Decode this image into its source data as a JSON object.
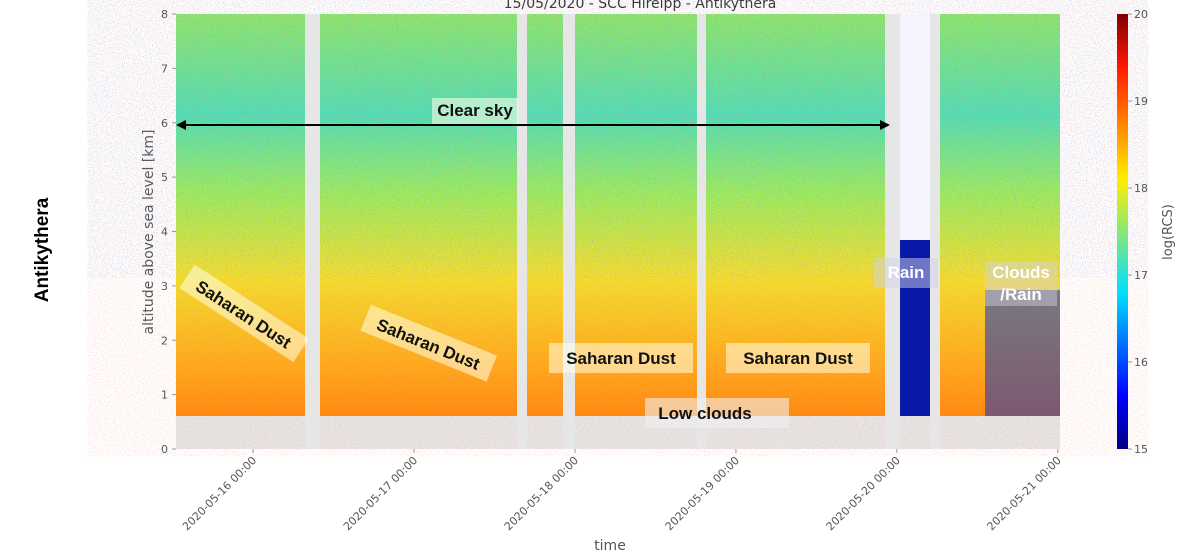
{
  "chart_data": {
    "type": "heatmap",
    "title": "15/05/2020 - SCC Hirelpp - Antikythera",
    "side_label": "Antikythera",
    "x_label": "time",
    "y_label": "altitude above sea level [km]",
    "xlim": [
      "2020-05-15T12:30",
      "2020-05-21T00:20"
    ],
    "xticks": [
      {
        "value": "2020-05-16T00:00",
        "label": "2020-05-16 00:00"
      },
      {
        "value": "2020-05-17T00:00",
        "label": "2020-05-17 00:00"
      },
      {
        "value": "2020-05-18T00:00",
        "label": "2020-05-18 00:00"
      },
      {
        "value": "2020-05-19T00:00",
        "label": "2020-05-19 00:00"
      },
      {
        "value": "2020-05-20T00:00",
        "label": "2020-05-20 00:00"
      },
      {
        "value": "2020-05-21T00:00",
        "label": "2020-05-21 00:00"
      }
    ],
    "ylim": [
      0,
      8
    ],
    "yticks": [
      0,
      1,
      2,
      3,
      4,
      5,
      6,
      7,
      8
    ],
    "colorbar": {
      "label": "log(RCS)",
      "lim": [
        15,
        20
      ],
      "ticks": [
        15,
        16,
        17,
        18,
        19,
        20
      ]
    },
    "annotations": [
      "Clear sky",
      "Saharan Dust",
      "Saharan Dust",
      "Saharan Dust",
      "Saharan Dust",
      "Low clouds",
      "Rain",
      "Clouds /Rain"
    ]
  }
}
